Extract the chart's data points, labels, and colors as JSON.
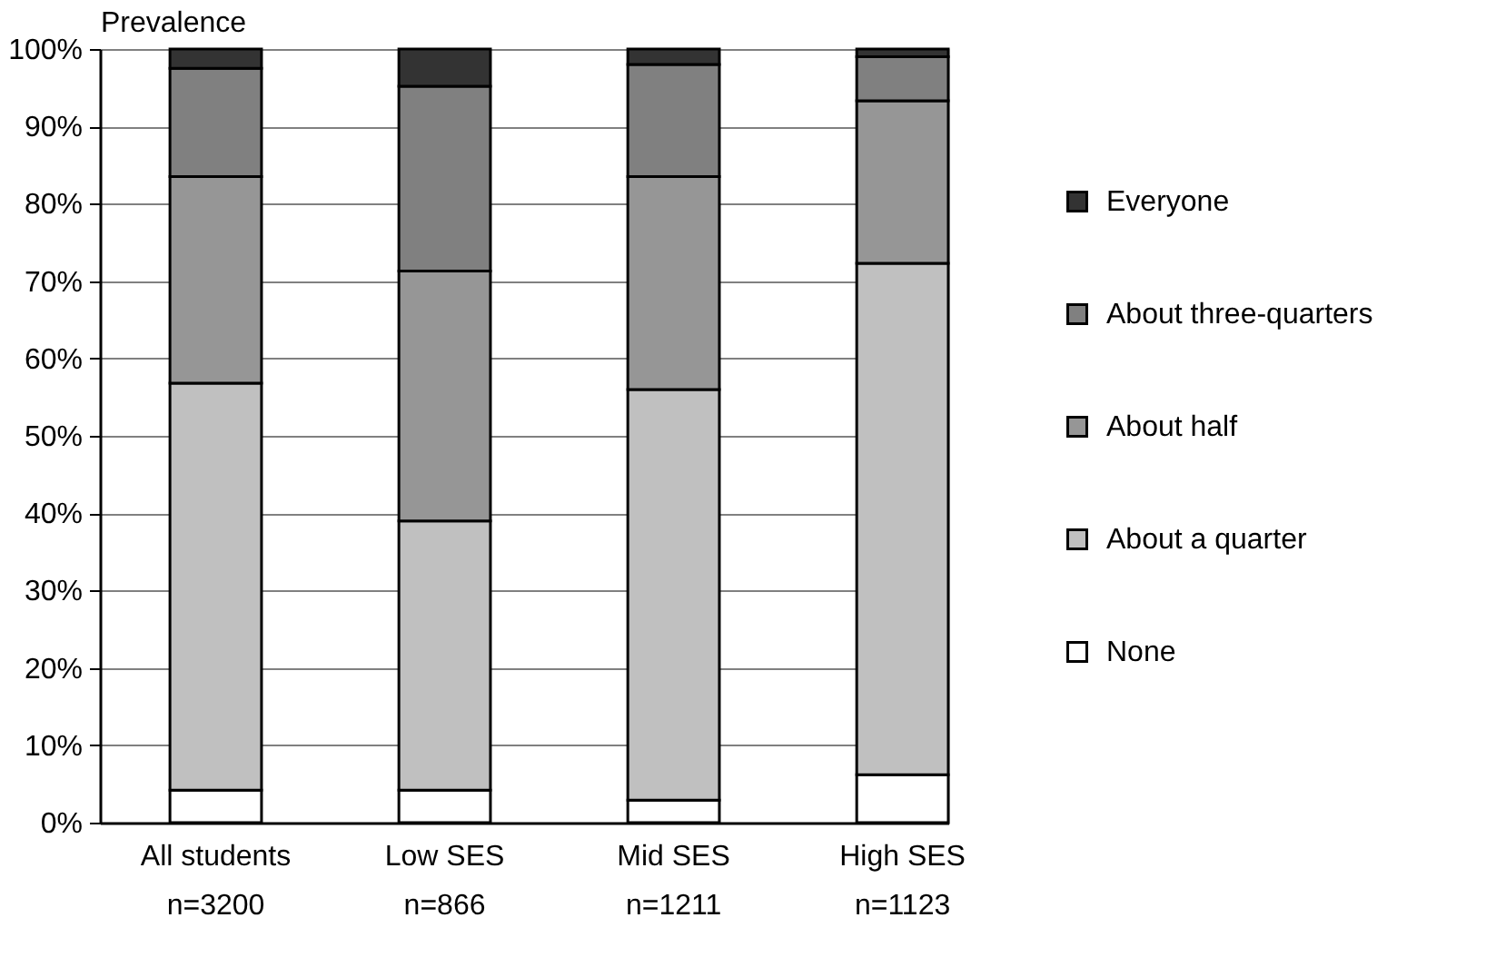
{
  "chart_data": {
    "type": "bar",
    "ylabel": "Prevalence",
    "categories": [
      "All students\nn=3200",
      "Low SES\nn=866",
      "Mid SES\nn=1211",
      "High SES\nn=1123"
    ],
    "stacked": true,
    "series": [
      {
        "name": "None",
        "color": "#ffffff",
        "values": [
          4.2,
          4.2,
          2.9,
          6.2
        ]
      },
      {
        "name": "About a quarter",
        "color": "#c0c0c0",
        "values": [
          52.6,
          34.8,
          53.1,
          66.1
        ]
      },
      {
        "name": "About half",
        "color": "#969696",
        "values": [
          26.7,
          32.3,
          27.5,
          21.0
        ]
      },
      {
        "name": "About three-quarters",
        "color": "#808080",
        "values": [
          14.0,
          23.9,
          14.5,
          5.7
        ]
      },
      {
        "name": "Everyone",
        "color": "#333333",
        "values": [
          2.5,
          4.8,
          2.0,
          1.0
        ]
      }
    ],
    "ylim": [
      0,
      100
    ],
    "yticks": [
      {
        "value": 0,
        "label": "0%"
      },
      {
        "value": 10,
        "label": "10%"
      },
      {
        "value": 20,
        "label": "20%"
      },
      {
        "value": 30,
        "label": "30%"
      },
      {
        "value": 40,
        "label": "40%"
      },
      {
        "value": 50,
        "label": "50%"
      },
      {
        "value": 60,
        "label": "60%"
      },
      {
        "value": 70,
        "label": "70%"
      },
      {
        "value": 80,
        "label": "80%"
      },
      {
        "value": 90,
        "label": "90%"
      },
      {
        "value": 100,
        "label": "100%"
      }
    ],
    "grid": "y",
    "legend": "right"
  }
}
